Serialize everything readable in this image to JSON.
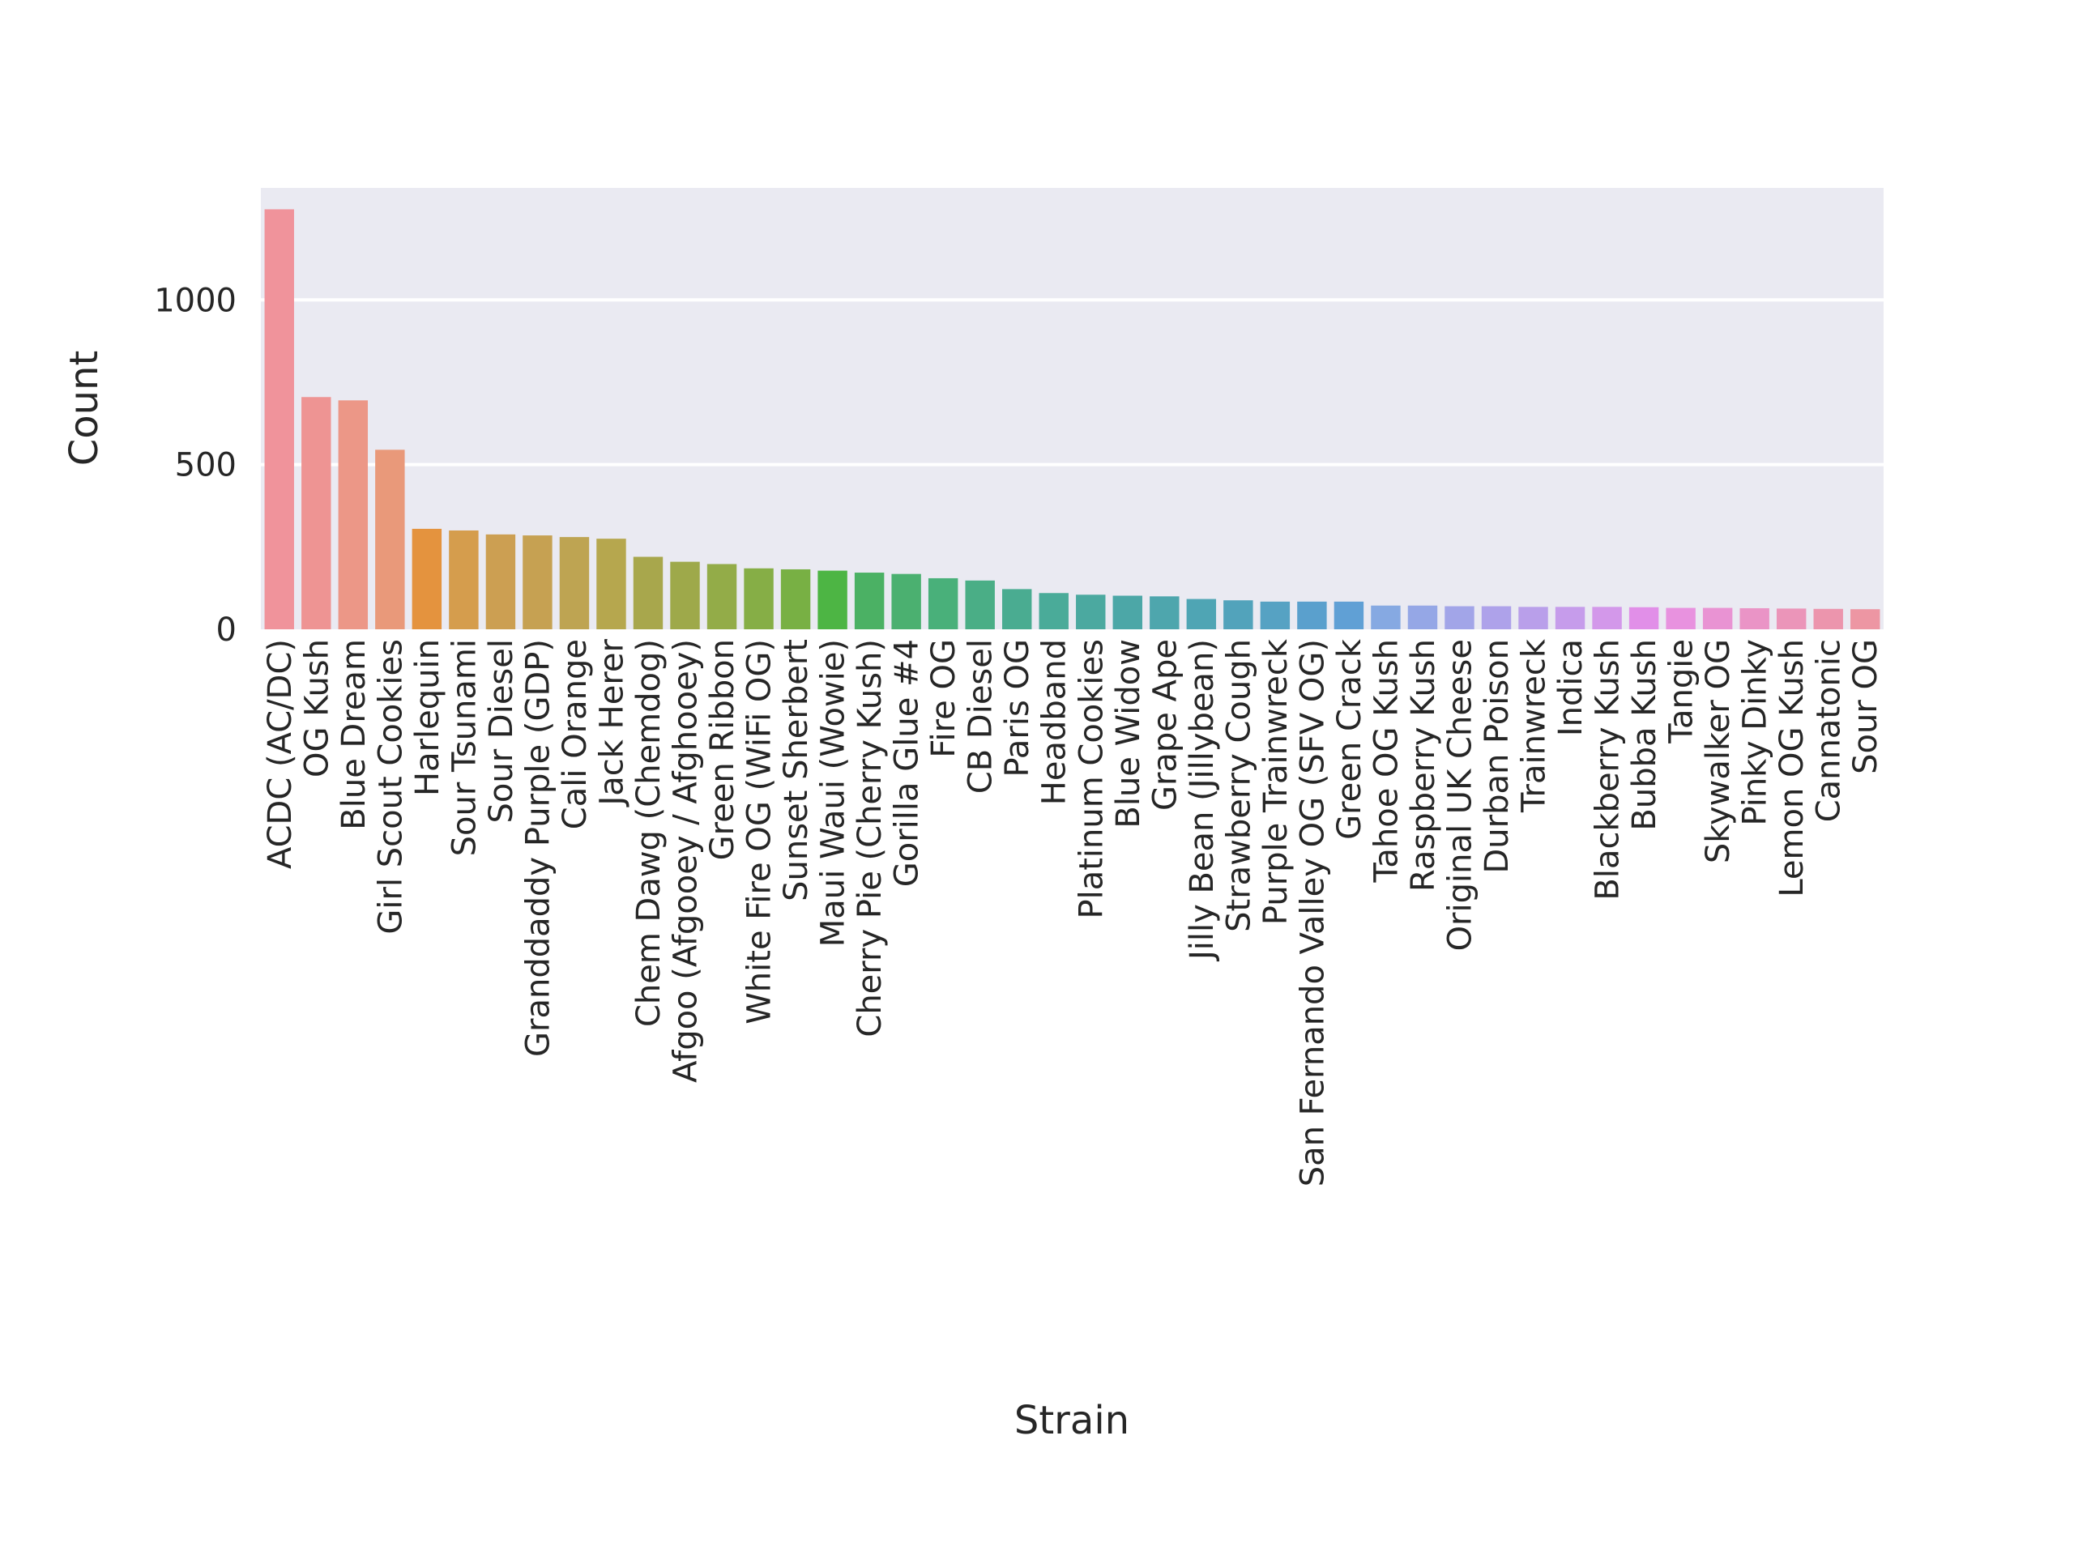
{
  "chart_data": {
    "type": "bar",
    "title": "",
    "xlabel": "Strain",
    "ylabel": "Count",
    "ylim": [
      0,
      1340
    ],
    "yticks": [
      0,
      500,
      1000
    ],
    "grid": true,
    "style": "seaborn-darkgrid",
    "categories": [
      "ACDC (AC/DC)",
      "OG Kush",
      "Blue Dream",
      "Girl Scout Cookies",
      "Harlequin",
      "Sour Tsunami",
      "Sour Diesel",
      "Granddaddy Purple (GDP)",
      "Cali Orange",
      "Jack Herer",
      "Chem Dawg (Chemdog)",
      "Afgoo (Afgooey / Afghooey)",
      "Green Ribbon",
      "White Fire OG (WiFi OG)",
      "Sunset Sherbert",
      "Maui Waui (Wowie)",
      "Cherry Pie (Cherry Kush)",
      "Gorilla Glue #4",
      "Fire OG",
      "CB Diesel",
      "Paris OG",
      "Headband",
      "Platinum Cookies",
      "Blue Widow",
      "Grape Ape",
      "Jilly Bean (Jillybean)",
      "Strawberry Cough",
      "Purple Trainwreck",
      "San Fernando Valley OG (SFV OG)",
      "Green Crack",
      "Tahoe OG Kush",
      "Raspberry Kush",
      "Original UK Cheese",
      "Durban Poison",
      "Trainwreck",
      "Indica",
      "Blackberry Kush",
      "Bubba Kush",
      "Tangie",
      "Skywalker OG",
      "Pinky Dinky",
      "Lemon OG Kush",
      "Cannatonic",
      "Sour OG"
    ],
    "values": [
      1275,
      705,
      695,
      545,
      305,
      300,
      288,
      285,
      280,
      275,
      220,
      205,
      198,
      185,
      182,
      178,
      172,
      168,
      155,
      148,
      122,
      110,
      105,
      102,
      100,
      92,
      88,
      84,
      84,
      84,
      72,
      72,
      70,
      70,
      68,
      68,
      68,
      67,
      65,
      65,
      64,
      63,
      62,
      61
    ],
    "colors": [
      "#f0939b",
      "#ee9493",
      "#ec9787",
      "#e9997a",
      "#e4933e",
      "#d59d4d",
      "#cc9f52",
      "#c6a152",
      "#bea452",
      "#b6a74e",
      "#a8a74c",
      "#9ea94a",
      "#93ac48",
      "#86ae46",
      "#78b044",
      "#4db544",
      "#4bb164",
      "#4bb070",
      "#49b07a",
      "#4aae86",
      "#4aac91",
      "#4aab99",
      "#4ba9a0",
      "#4ca7a7",
      "#4ea6ad",
      "#4fa5b4",
      "#52a3bb",
      "#56a2c3",
      "#5aa0cd",
      "#60a0d5",
      "#86a9e2",
      "#95a7e6",
      "#a2a5e8",
      "#aea2ea",
      "#b99fea",
      "#c69ceb",
      "#d398ea",
      "#e18fe8",
      "#e892df",
      "#e993d3",
      "#ea94c6",
      "#eb95b9",
      "#ec95ad",
      "#ed96a3"
    ]
  }
}
